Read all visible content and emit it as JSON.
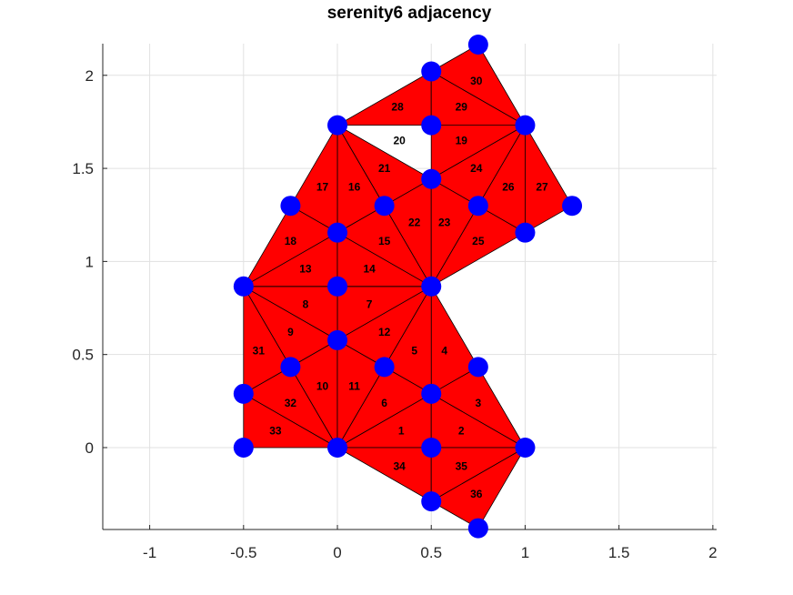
{
  "chart_data": {
    "type": "mesh",
    "title": "serenity6 adjacency",
    "xlabel": "",
    "ylabel": "",
    "xlim": [
      -1.25,
      2.02
    ],
    "ylim": [
      -0.44,
      2.17
    ],
    "grid": true,
    "x_ticks": [
      -1,
      -0.5,
      0,
      0.5,
      1,
      1.5,
      2
    ],
    "x_tick_labels": [
      "-1",
      "-0.5",
      "0",
      "0.5",
      "1",
      "1.5",
      "2"
    ],
    "y_ticks": [
      0,
      0.5,
      1,
      1.5,
      2
    ],
    "y_tick_labels": [
      "0",
      "0.5",
      "1",
      "1.5",
      "2"
    ],
    "fill_color": "#ff0000",
    "edge_color": "#000000",
    "node_color": "#0000ff",
    "nodes": [
      [
        0,
        0
      ],
      [
        0.5,
        0
      ],
      [
        1,
        0
      ],
      [
        0.75,
        0.433
      ],
      [
        0.5,
        0.289
      ],
      [
        0.25,
        0.433
      ],
      [
        0.5,
        0.866
      ],
      [
        0,
        0.577
      ],
      [
        0,
        0.866
      ],
      [
        -0.25,
        0.433
      ],
      [
        -0.5,
        0.866
      ],
      [
        -0.5,
        0.289
      ],
      [
        -0.5,
        0
      ],
      [
        0,
        1.155
      ],
      [
        0.25,
        1.299
      ],
      [
        0.5,
        1.443
      ],
      [
        -0.25,
        1.299
      ],
      [
        0,
        1.732
      ],
      [
        0.5,
        1.732
      ],
      [
        1,
        1.732
      ],
      [
        0.75,
        1.299
      ],
      [
        1,
        1.155
      ],
      [
        1.25,
        1.299
      ],
      [
        0.5,
        2.021
      ],
      [
        0.75,
        2.165
      ],
      [
        0.5,
        -0.289
      ],
      [
        0.75,
        -0.433
      ]
    ],
    "triangles": [
      {
        "label": "1",
        "v": [
          0,
          1,
          4
        ]
      },
      {
        "label": "2",
        "v": [
          1,
          2,
          4
        ]
      },
      {
        "label": "3",
        "v": [
          2,
          3,
          4
        ]
      },
      {
        "label": "4",
        "v": [
          3,
          4,
          6
        ]
      },
      {
        "label": "5",
        "v": [
          4,
          5,
          6
        ]
      },
      {
        "label": "6",
        "v": [
          0,
          4,
          5
        ]
      },
      {
        "label": "7",
        "v": [
          6,
          7,
          8
        ]
      },
      {
        "label": "8",
        "v": [
          7,
          8,
          10
        ]
      },
      {
        "label": "9",
        "v": [
          7,
          9,
          10
        ]
      },
      {
        "label": "10",
        "v": [
          0,
          7,
          9
        ]
      },
      {
        "label": "11",
        "v": [
          0,
          5,
          7
        ]
      },
      {
        "label": "12",
        "v": [
          5,
          6,
          7
        ]
      },
      {
        "label": "13",
        "v": [
          8,
          10,
          13
        ]
      },
      {
        "label": "14",
        "v": [
          6,
          8,
          13
        ]
      },
      {
        "label": "15",
        "v": [
          6,
          13,
          14
        ]
      },
      {
        "label": "16",
        "v": [
          13,
          14,
          17
        ]
      },
      {
        "label": "17",
        "v": [
          13,
          16,
          17
        ]
      },
      {
        "label": "18",
        "v": [
          10,
          13,
          16
        ]
      },
      {
        "label": "19",
        "v": [
          15,
          18,
          19
        ]
      },
      {
        "label": "20",
        "v": [
          14,
          15,
          17
        ]
      },
      {
        "label": "21",
        "v": [
          14,
          15,
          17
        ]
      },
      {
        "label": "22",
        "v": [
          6,
          14,
          15
        ]
      },
      {
        "label": "23",
        "v": [
          6,
          15,
          20
        ]
      },
      {
        "label": "24",
        "v": [
          15,
          19,
          20
        ]
      },
      {
        "label": "25",
        "v": [
          6,
          20,
          21
        ]
      },
      {
        "label": "26",
        "v": [
          19,
          20,
          21
        ]
      },
      {
        "label": "27",
        "v": [
          19,
          21,
          22
        ]
      },
      {
        "label": "28",
        "v": [
          17,
          18,
          23
        ]
      },
      {
        "label": "29",
        "v": [
          18,
          19,
          23
        ]
      },
      {
        "label": "30",
        "v": [
          19,
          23,
          24
        ]
      },
      {
        "label": "31",
        "v": [
          9,
          10,
          11
        ]
      },
      {
        "label": "32",
        "v": [
          0,
          9,
          11
        ]
      },
      {
        "label": "33",
        "v": [
          0,
          11,
          12
        ]
      },
      {
        "label": "34",
        "v": [
          0,
          1,
          25
        ]
      },
      {
        "label": "35",
        "v": [
          1,
          2,
          25
        ]
      },
      {
        "label": "36",
        "v": [
          2,
          25,
          26
        ]
      }
    ],
    "label_positions": {
      "1": [
        0.34,
        0.09
      ],
      "2": [
        0.66,
        0.09
      ],
      "3": [
        0.75,
        0.24
      ],
      "4": [
        0.57,
        0.52
      ],
      "5": [
        0.41,
        0.52
      ],
      "6": [
        0.25,
        0.24
      ],
      "7": [
        0.17,
        0.77
      ],
      "8": [
        -0.17,
        0.77
      ],
      "9": [
        -0.25,
        0.62
      ],
      "10": [
        -0.08,
        0.33
      ],
      "11": [
        0.09,
        0.33
      ],
      "12": [
        0.25,
        0.62
      ],
      "13": [
        -0.17,
        0.96
      ],
      "14": [
        0.17,
        0.96
      ],
      "15": [
        0.25,
        1.11
      ],
      "16": [
        0.09,
        1.4
      ],
      "17": [
        -0.08,
        1.4
      ],
      "18": [
        -0.25,
        1.11
      ],
      "19": [
        0.66,
        1.65
      ],
      "20": [
        0.33,
        1.65
      ],
      "21": [
        0.25,
        1.5
      ],
      "22": [
        0.41,
        1.21
      ],
      "23": [
        0.57,
        1.21
      ],
      "24": [
        0.74,
        1.5
      ],
      "25": [
        0.75,
        1.11
      ],
      "26": [
        0.91,
        1.4
      ],
      "27": [
        1.09,
        1.4
      ],
      "28": [
        0.32,
        1.83
      ],
      "29": [
        0.66,
        1.83
      ],
      "30": [
        0.74,
        1.97
      ],
      "31": [
        -0.42,
        0.52
      ],
      "32": [
        -0.25,
        0.24
      ],
      "33": [
        -0.33,
        0.09
      ],
      "34": [
        0.33,
        -0.1
      ],
      "35": [
        0.66,
        -0.1
      ],
      "36": [
        0.74,
        -0.25
      ]
    }
  }
}
